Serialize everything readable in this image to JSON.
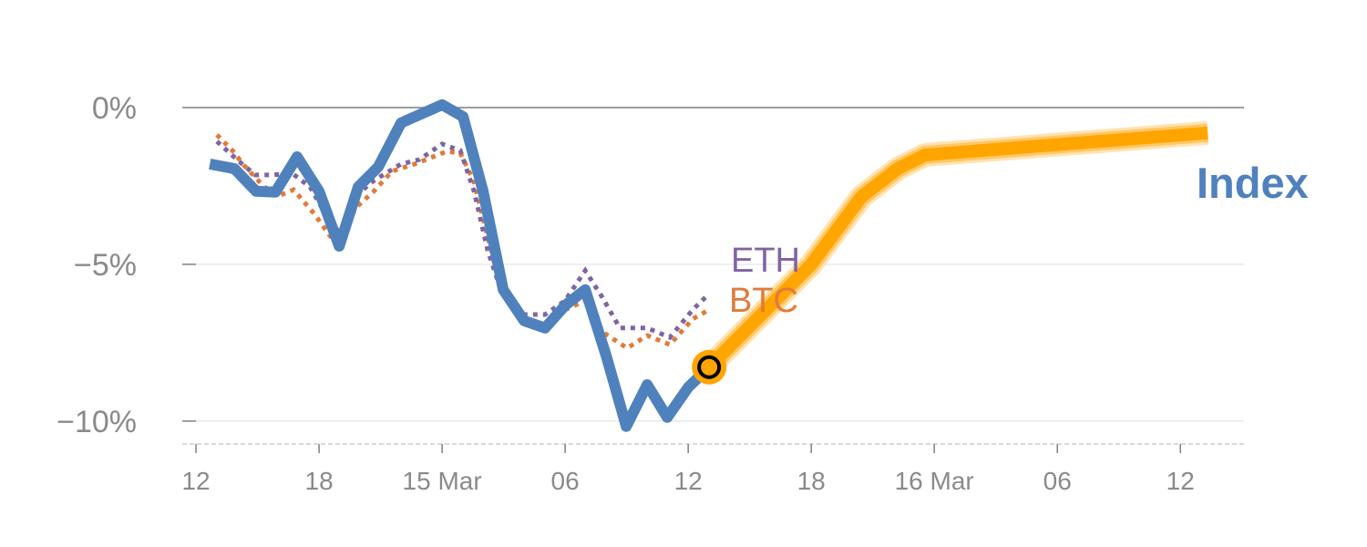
{
  "chart_data": {
    "type": "line",
    "title": "",
    "xlabel": "",
    "ylabel": "",
    "x_unit": "hours since first tick",
    "xlim": [
      -0.67,
      51.1
    ],
    "ylim": [
      -10.73,
      2.0
    ],
    "grid": true,
    "x_ticks": [
      {
        "x": 0,
        "label": "12"
      },
      {
        "x": 6,
        "label": "18"
      },
      {
        "x": 12,
        "label": "15 Mar"
      },
      {
        "x": 18,
        "label": "06"
      },
      {
        "x": 24,
        "label": "12"
      },
      {
        "x": 30,
        "label": "18"
      },
      {
        "x": 36,
        "label": "16 Mar"
      },
      {
        "x": 42,
        "label": "06"
      },
      {
        "x": 48,
        "label": "12"
      }
    ],
    "y_ticks": [
      {
        "y": 0,
        "label": "0%"
      },
      {
        "y": -5,
        "label": "−5%"
      },
      {
        "y": -10,
        "label": "−10%"
      }
    ],
    "series": [
      {
        "name": "Index",
        "label": "Index",
        "color": "#4f81bd",
        "style": "solid",
        "x": [
          0.67,
          1.87,
          2.93,
          3.87,
          4.93,
          6.0,
          6.98,
          7.91,
          8.89,
          10.0,
          12.0,
          13.02,
          14.0,
          14.98,
          16.0,
          17.02,
          18.0,
          18.98,
          20.0,
          20.98,
          22.0,
          22.98,
          24.0,
          25.02
        ],
        "y": [
          -1.8,
          -1.95,
          -2.67,
          -2.7,
          -1.57,
          -2.67,
          -4.42,
          -2.53,
          -1.89,
          -0.49,
          0.09,
          -0.29,
          -2.67,
          -5.81,
          -6.8,
          -7.03,
          -6.31,
          -5.81,
          -7.91,
          -10.17,
          -8.84,
          -9.88,
          -8.92,
          -8.28
        ]
      },
      {
        "name": "BTC",
        "label": "BTC",
        "color": "#e07b39",
        "style": "dotted",
        "x": [
          1.02,
          1.78,
          2.36,
          3.33,
          4.0,
          4.76,
          5.78,
          6.89,
          7.78,
          8.67,
          9.56,
          10.67,
          11.56,
          12.22,
          12.89,
          13.56,
          14.22,
          14.89,
          15.78,
          17.02,
          18.0,
          18.98,
          19.87,
          21.02,
          22.0,
          23.11,
          24.22,
          25.02
        ],
        "y": [
          -0.87,
          -1.37,
          -1.86,
          -2.53,
          -2.82,
          -2.62,
          -3.4,
          -4.42,
          -3.2,
          -2.67,
          -2.03,
          -1.8,
          -1.57,
          -1.4,
          -1.45,
          -2.38,
          -4.13,
          -5.87,
          -6.74,
          -6.98,
          -6.45,
          -6.16,
          -7.18,
          -7.67,
          -7.27,
          -7.56,
          -6.74,
          -6.45
        ]
      },
      {
        "name": "ETH",
        "label": "ETH",
        "color": "#8064a2",
        "style": "dotted",
        "x": [
          1.02,
          2.0,
          2.89,
          3.78,
          4.67,
          5.56,
          6.44,
          7.11,
          7.78,
          8.67,
          10.0,
          10.89,
          12.0,
          12.89,
          13.56,
          14.22,
          14.89,
          15.78,
          17.02,
          18.0,
          18.98,
          19.78,
          20.67,
          22.0,
          23.11,
          24.22,
          24.89
        ],
        "y": [
          -1.08,
          -1.66,
          -2.15,
          -2.15,
          -2.09,
          -2.53,
          -3.55,
          -4.07,
          -2.82,
          -2.33,
          -1.8,
          -1.66,
          -1.16,
          -1.37,
          -2.67,
          -4.56,
          -5.87,
          -6.6,
          -6.6,
          -6.16,
          -5.2,
          -6.02,
          -7.03,
          -7.03,
          -7.33,
          -6.45,
          -6.02
        ]
      },
      {
        "name": "Index forecast",
        "color": "#ffa500",
        "style": "solid-thick",
        "x": [
          25.02,
          30.0,
          32.44,
          34.22,
          35.56,
          49.33
        ],
        "y": [
          -8.28,
          -5.0,
          -2.85,
          -1.95,
          -1.51,
          -0.81
        ]
      }
    ],
    "marker": {
      "x": 25.02,
      "y": -8.28,
      "fill": "#ffa500",
      "stroke": "#000000"
    }
  }
}
